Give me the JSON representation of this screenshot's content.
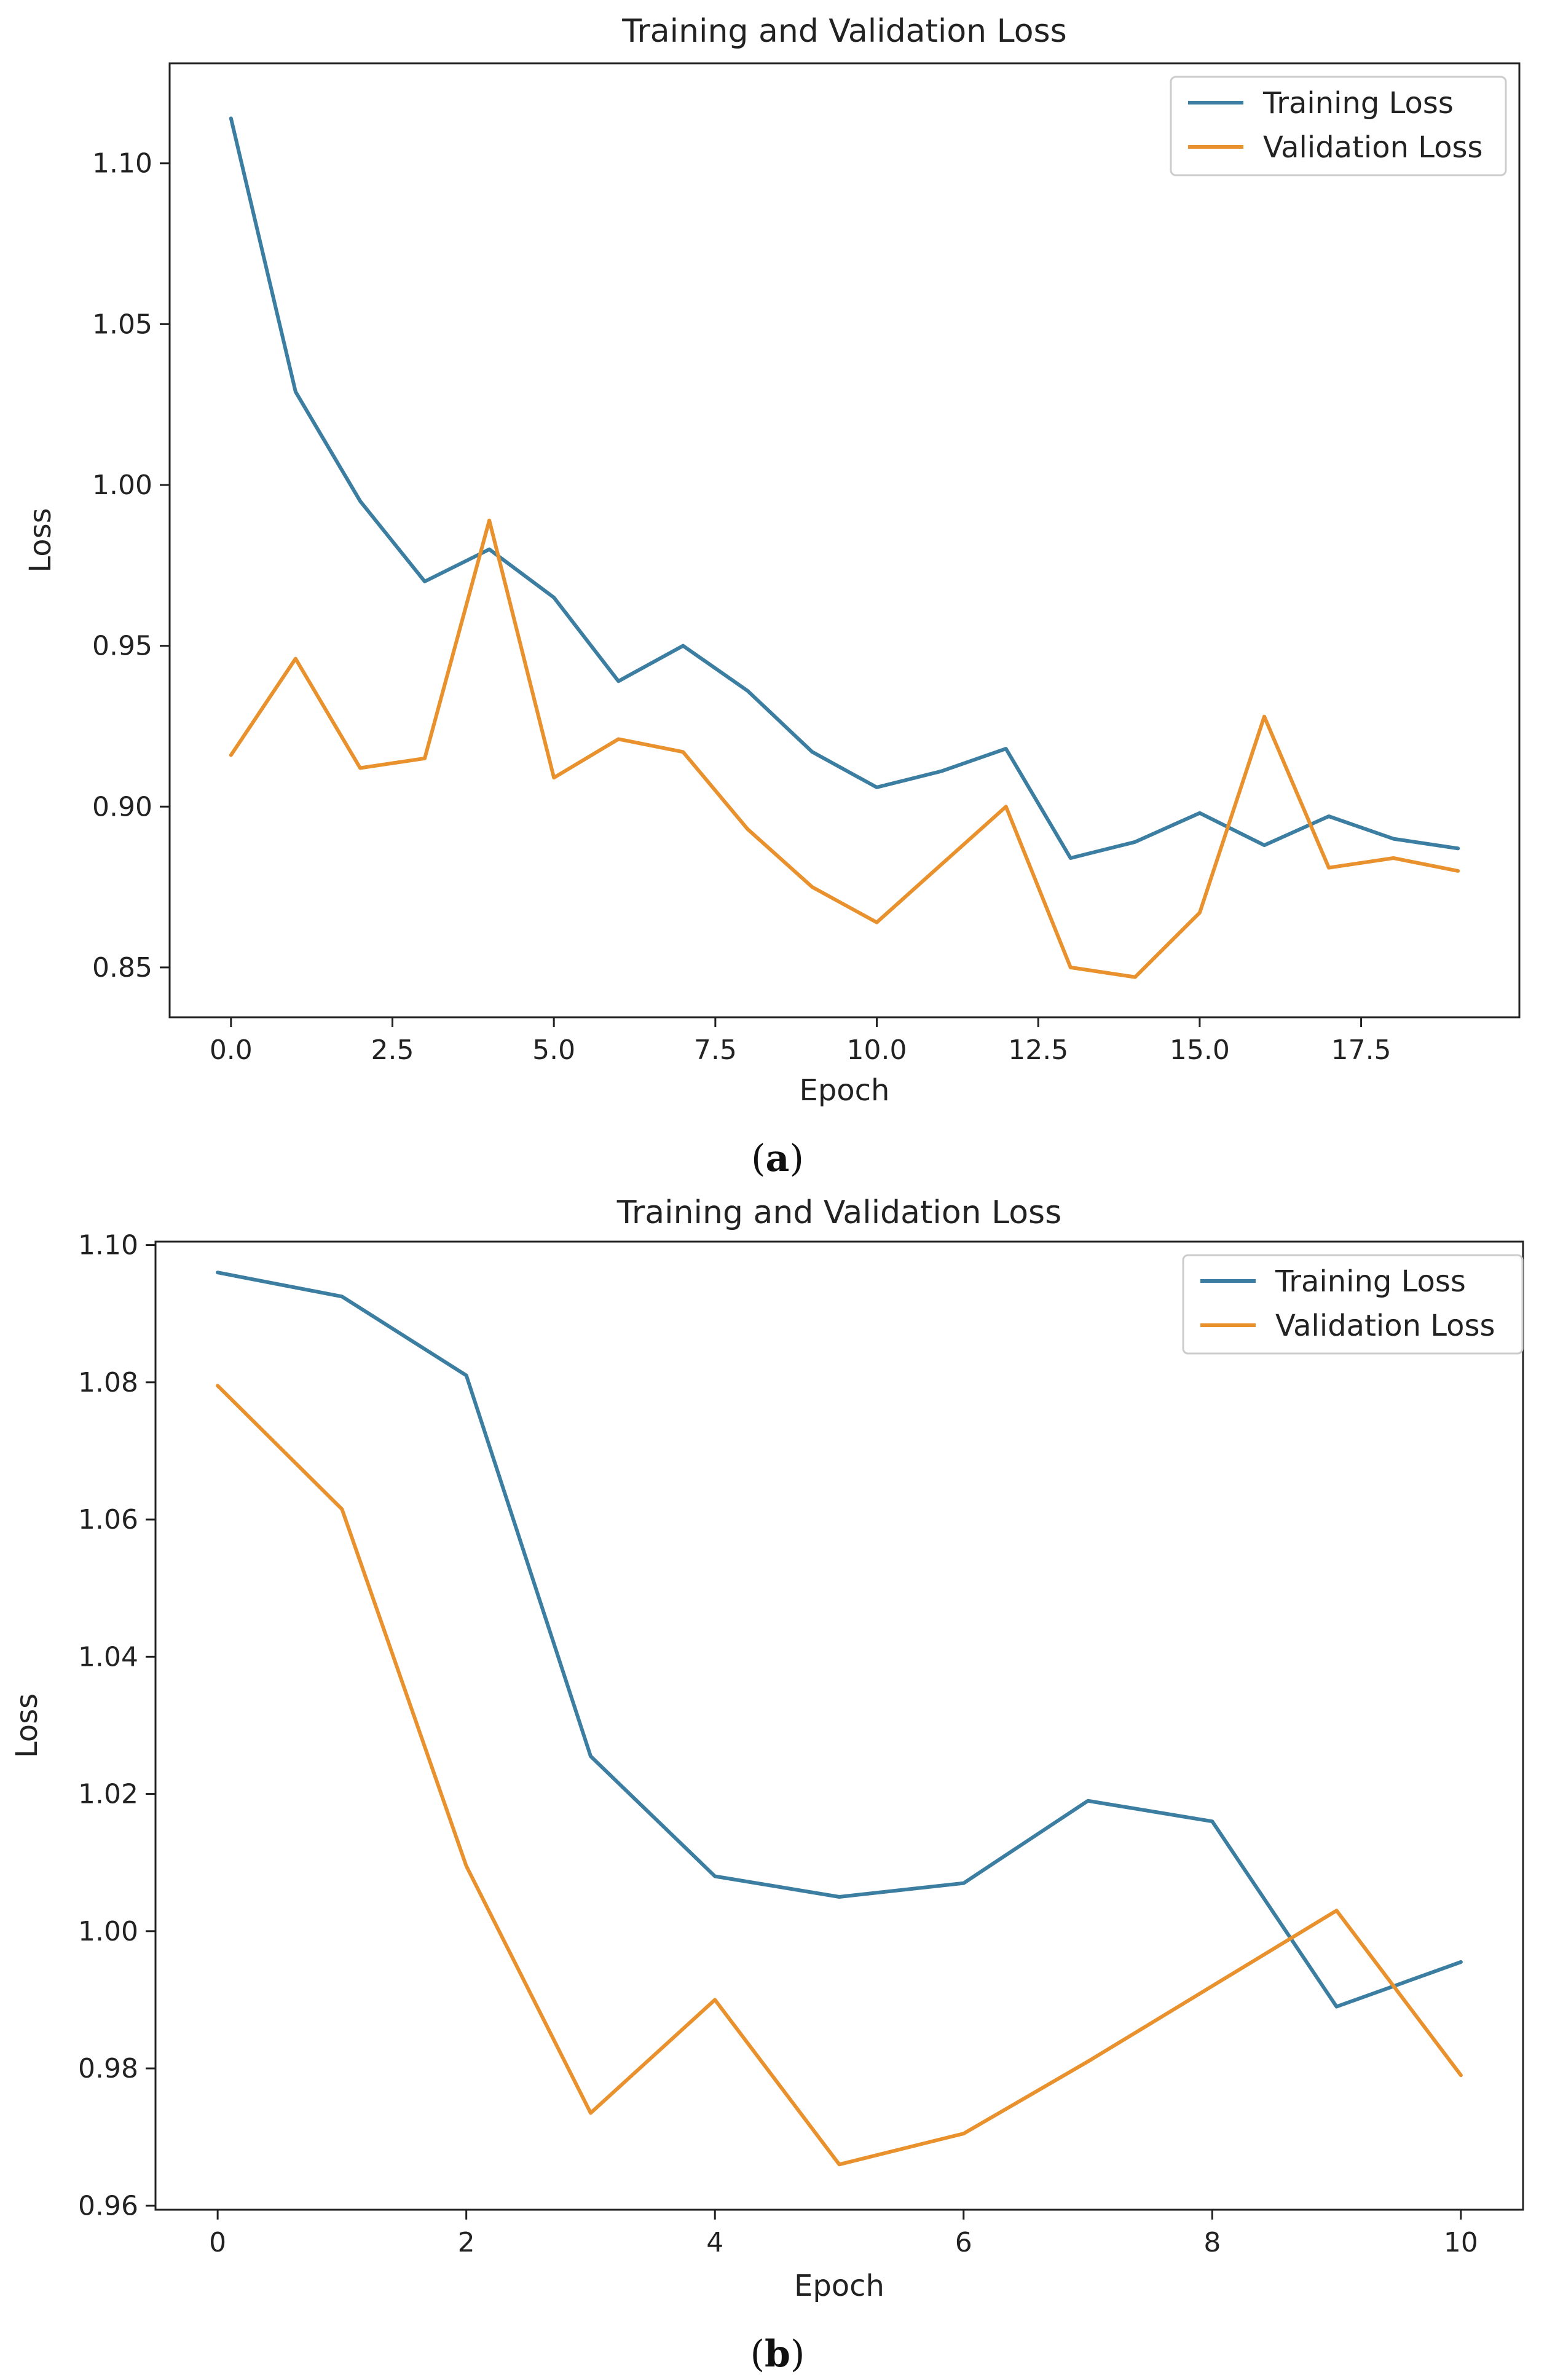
{
  "chart_data": [
    {
      "type": "line",
      "title": "Training and Validation Loss",
      "xlabel": "Epoch",
      "ylabel": "Loss",
      "caption": {
        "open": "(",
        "letter": "a",
        "close": ")"
      },
      "xlim": [
        -0.95,
        19.95
      ],
      "ylim": [
        0.8345,
        1.1311
      ],
      "xticks": [
        0.0,
        2.5,
        5.0,
        7.5,
        10.0,
        12.5,
        15.0,
        17.5
      ],
      "xtick_labels": [
        "0.0",
        "2.5",
        "5.0",
        "7.5",
        "10.0",
        "12.5",
        "15.0",
        "17.5"
      ],
      "yticks": [
        0.85,
        0.9,
        0.95,
        1.0,
        1.05,
        1.1
      ],
      "ytick_labels": [
        "0.85",
        "0.90",
        "0.95",
        "1.00",
        "1.05",
        "1.10"
      ],
      "legend_position": "top-right",
      "x": [
        0,
        1,
        2,
        3,
        4,
        5,
        6,
        7,
        8,
        9,
        10,
        11,
        12,
        13,
        14,
        15,
        16,
        17,
        18,
        19
      ],
      "series": [
        {
          "name": "Training Loss",
          "color": "#3b7ea1",
          "values": [
            1.114,
            1.029,
            0.995,
            0.97,
            0.98,
            0.965,
            0.939,
            0.95,
            0.936,
            0.917,
            0.906,
            0.911,
            0.918,
            0.884,
            0.889,
            0.898,
            0.888,
            0.897,
            0.89,
            0.887
          ]
        },
        {
          "name": "Validation Loss",
          "color": "#e8912d",
          "values": [
            0.916,
            0.946,
            0.912,
            0.915,
            0.989,
            0.909,
            0.921,
            0.917,
            0.893,
            0.875,
            0.864,
            0.882,
            0.9,
            0.85,
            0.847,
            0.867,
            0.928,
            0.881,
            0.884,
            0.88
          ]
        }
      ]
    },
    {
      "type": "line",
      "title": "Training and Validation Loss",
      "xlabel": "Epoch",
      "ylabel": "Loss",
      "caption": {
        "open": "(",
        "letter": "b",
        "close": ")"
      },
      "xlim": [
        -0.5,
        10.5
      ],
      "ylim": [
        0.9594,
        1.1005
      ],
      "xticks": [
        0,
        2,
        4,
        6,
        8,
        10
      ],
      "xtick_labels": [
        "0",
        "2",
        "4",
        "6",
        "8",
        "10"
      ],
      "yticks": [
        0.96,
        0.98,
        1.0,
        1.02,
        1.04,
        1.06,
        1.08,
        1.1
      ],
      "ytick_labels": [
        "0.96",
        "0.98",
        "1.00",
        "1.02",
        "1.04",
        "1.06",
        "1.08",
        "1.10"
      ],
      "legend_position": "top-right",
      "x": [
        0,
        1,
        2,
        3,
        4,
        5,
        6,
        7,
        8,
        9,
        10
      ],
      "series": [
        {
          "name": "Training Loss",
          "color": "#3b7ea1",
          "values": [
            1.096,
            1.0925,
            1.081,
            1.0255,
            1.008,
            1.005,
            1.007,
            1.019,
            1.016,
            0.989,
            0.9955
          ]
        },
        {
          "name": "Validation Loss",
          "color": "#e8912d",
          "values": [
            1.0795,
            1.0615,
            1.0095,
            0.9735,
            0.99,
            0.966,
            0.9705,
            0.981,
            0.992,
            1.003,
            0.979
          ]
        }
      ]
    }
  ]
}
